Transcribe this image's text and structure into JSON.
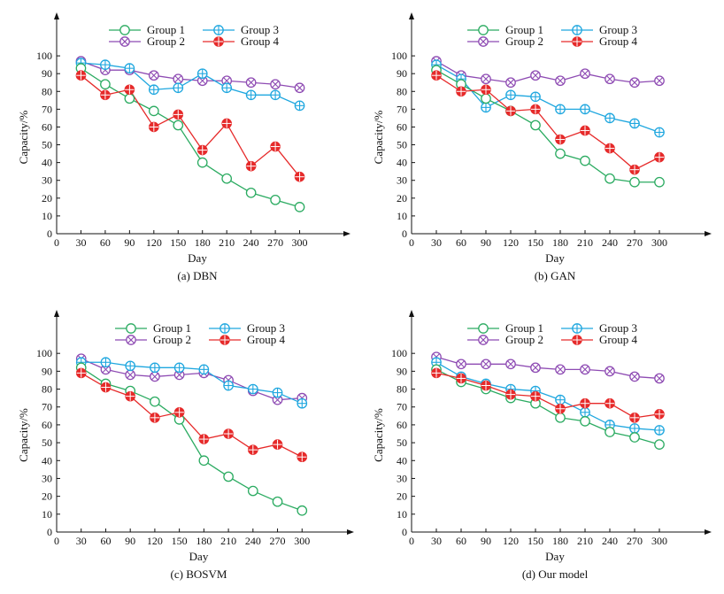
{
  "figure": {
    "panels_count": 4
  },
  "chart_data": [
    {
      "type": "line",
      "caption": "(a) DBN",
      "xlabel": "Day",
      "ylabel": "Capacity/%",
      "x": [
        30,
        60,
        90,
        120,
        150,
        180,
        210,
        240,
        270,
        300
      ],
      "xticks": [
        "0",
        "30",
        "60",
        "90",
        "120",
        "150",
        "180",
        "210",
        "240",
        "270",
        "300"
      ],
      "yticks": [
        "0",
        "10",
        "20",
        "30",
        "40",
        "50",
        "60",
        "70",
        "80",
        "90",
        "100"
      ],
      "xlim": [
        0,
        330
      ],
      "ylim": [
        0,
        110
      ],
      "series": [
        {
          "name": "Group 1",
          "values": [
            93,
            84,
            76,
            69,
            61,
            40,
            31,
            23,
            19,
            15
          ]
        },
        {
          "name": "Group 2",
          "values": [
            97,
            92,
            92,
            89,
            87,
            86,
            86,
            85,
            84,
            82
          ]
        },
        {
          "name": "Group 3",
          "values": [
            96,
            95,
            93,
            81,
            82,
            90,
            82,
            78,
            78,
            72
          ]
        },
        {
          "name": "Group 4",
          "values": [
            89,
            78,
            81,
            60,
            67,
            47,
            62,
            38,
            49,
            32
          ]
        }
      ]
    },
    {
      "type": "line",
      "caption": "(b) GAN",
      "xlabel": "Day",
      "ylabel": "Capacity/%",
      "x": [
        30,
        60,
        90,
        120,
        150,
        180,
        210,
        240,
        270,
        300
      ],
      "xticks": [
        "0",
        "30",
        "60",
        "90",
        "120",
        "150",
        "180",
        "210",
        "240",
        "270",
        "300"
      ],
      "yticks": [
        "0",
        "10",
        "20",
        "30",
        "40",
        "50",
        "60",
        "70",
        "80",
        "90",
        "100"
      ],
      "xlim": [
        0,
        330
      ],
      "ylim": [
        0,
        110
      ],
      "series": [
        {
          "name": "Group 1",
          "values": [
            92,
            84,
            76,
            69,
            61,
            45,
            41,
            31,
            29,
            29
          ]
        },
        {
          "name": "Group 2",
          "values": [
            97,
            89,
            87,
            85,
            89,
            86,
            90,
            87,
            85,
            86
          ]
        },
        {
          "name": "Group 3",
          "values": [
            95,
            87,
            71,
            78,
            77,
            70,
            70,
            65,
            62,
            57
          ]
        },
        {
          "name": "Group 4",
          "values": [
            89,
            80,
            81,
            69,
            70,
            53,
            58,
            48,
            36,
            43
          ]
        }
      ]
    },
    {
      "type": "line",
      "caption": "(c) BOSVM",
      "xlabel": "Day",
      "ylabel": "Capacity/%",
      "x": [
        30,
        60,
        90,
        120,
        150,
        180,
        210,
        240,
        270,
        300
      ],
      "xticks": [
        "0",
        "30",
        "60",
        "90",
        "120",
        "150",
        "180",
        "210",
        "240",
        "270",
        "300"
      ],
      "yticks": [
        "0",
        "10",
        "20",
        "30",
        "40",
        "50",
        "60",
        "70",
        "80",
        "90",
        "100"
      ],
      "xlim": [
        0,
        330
      ],
      "ylim": [
        0,
        110
      ],
      "series": [
        {
          "name": "Group 1",
          "values": [
            92,
            83,
            79,
            73,
            63,
            40,
            31,
            23,
            17,
            12
          ]
        },
        {
          "name": "Group 2",
          "values": [
            97,
            91,
            88,
            87,
            88,
            89,
            85,
            79,
            74,
            75
          ]
        },
        {
          "name": "Group 3",
          "values": [
            95,
            95,
            93,
            92,
            92,
            91,
            82,
            80,
            78,
            72
          ]
        },
        {
          "name": "Group 4",
          "values": [
            89,
            81,
            76,
            64,
            67,
            52,
            55,
            46,
            49,
            42
          ]
        }
      ]
    },
    {
      "type": "line",
      "caption": "(d) Our model",
      "xlabel": "Day",
      "ylabel": "Capacity/%",
      "x": [
        30,
        60,
        90,
        120,
        150,
        180,
        210,
        240,
        270,
        300
      ],
      "xticks": [
        "0",
        "30",
        "60",
        "90",
        "120",
        "150",
        "180",
        "210",
        "240",
        "270",
        "300"
      ],
      "yticks": [
        "0",
        "10",
        "20",
        "30",
        "40",
        "50",
        "60",
        "70",
        "80",
        "90",
        "100"
      ],
      "xlim": [
        0,
        330
      ],
      "ylim": [
        0,
        110
      ],
      "series": [
        {
          "name": "Group 1",
          "values": [
            91,
            84,
            80,
            75,
            72,
            64,
            62,
            56,
            53,
            49
          ]
        },
        {
          "name": "Group 2",
          "values": [
            98,
            94,
            94,
            94,
            92,
            91,
            91,
            90,
            87,
            86
          ]
        },
        {
          "name": "Group 3",
          "values": [
            95,
            87,
            83,
            80,
            79,
            74,
            67,
            60,
            58,
            57
          ]
        },
        {
          "name": "Group 4",
          "values": [
            89,
            86,
            82,
            77,
            76,
            69,
            72,
            72,
            64,
            66
          ]
        }
      ]
    }
  ],
  "series_styles": [
    {
      "name": "Group 1",
      "color": "#2bab61",
      "marker": "circle"
    },
    {
      "name": "Group 2",
      "color": "#8e4bb3",
      "marker": "circle-x"
    },
    {
      "name": "Group 3",
      "color": "#1fa7df",
      "marker": "circle-plus"
    },
    {
      "name": "Group 4",
      "color": "#e62a2a",
      "marker": "filled-plus"
    }
  ]
}
